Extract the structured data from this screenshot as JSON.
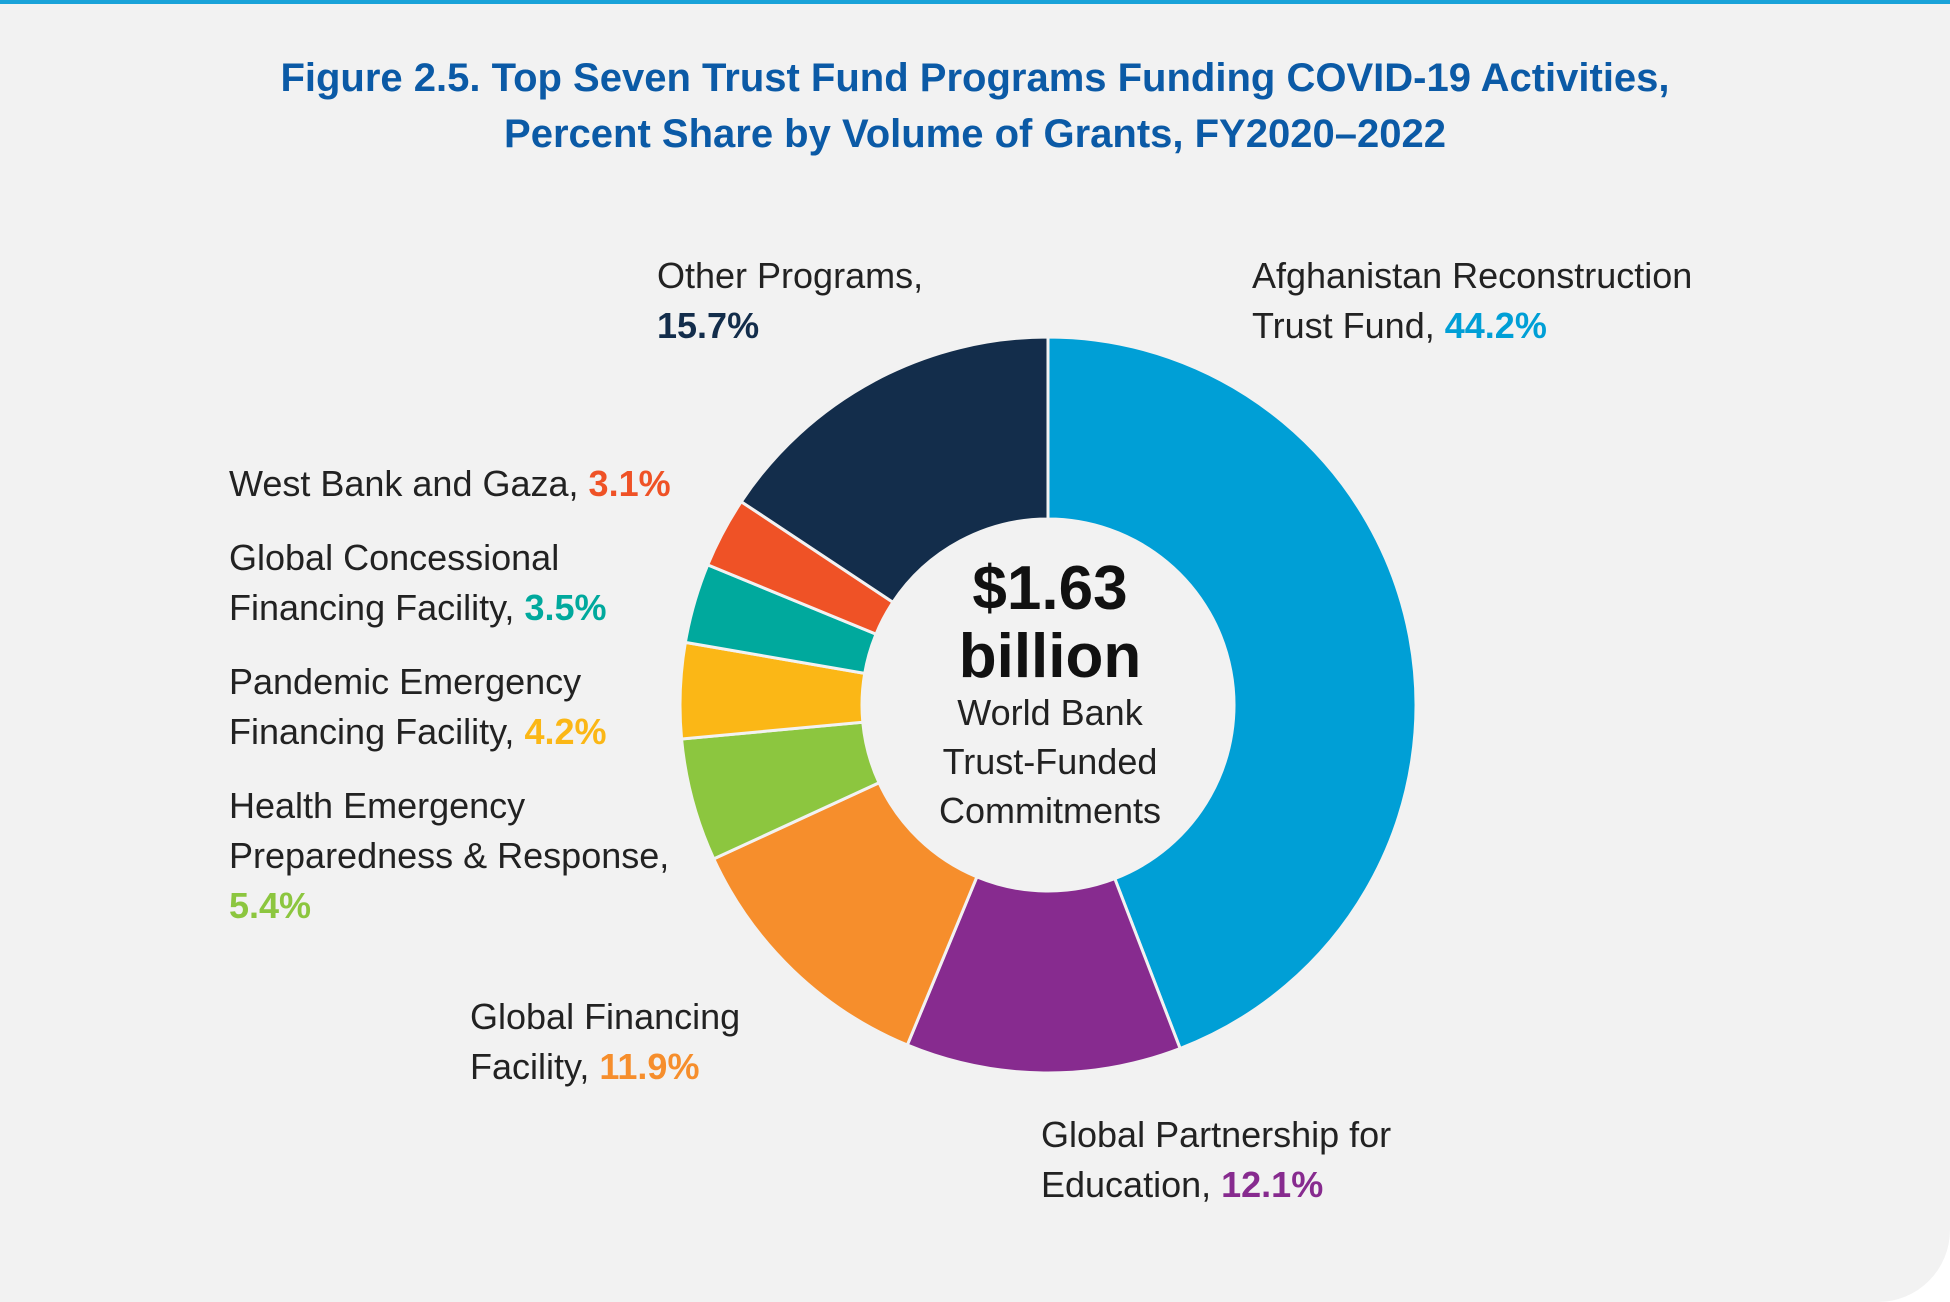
{
  "title": {
    "line1": "Figure 2.5. Top Seven Trust Fund Programs Funding COVID-19 Activities,",
    "line2": "Percent Share by Volume of Grants, FY2020–2022"
  },
  "center": {
    "amount": "$1.63",
    "unit": "billion",
    "line1": "World Bank",
    "line2": "Trust-Funded",
    "line3": "Commitments"
  },
  "chart_data": {
    "type": "pie",
    "variant": "donut",
    "title": "Figure 2.5. Top Seven Trust Fund Programs Funding COVID-19 Activities, Percent Share by Volume of Grants, FY2020–2022",
    "start": "12 o'clock",
    "direction": "clockwise",
    "slices": [
      {
        "label_lines": [
          "Afghanistan Reconstruction",
          "Trust Fund,"
        ],
        "value": 44.2,
        "value_label": "44.2%",
        "color": "#009fd6"
      },
      {
        "label_lines": [
          "Global Partnership for",
          "Education,"
        ],
        "value": 12.1,
        "value_label": "12.1%",
        "color": "#872b8f"
      },
      {
        "label_lines": [
          "Global Financing",
          "Facility,"
        ],
        "value": 11.9,
        "value_label": "11.9%",
        "color": "#f68e2c"
      },
      {
        "label_lines": [
          "Health Emergency",
          "Preparedness & Response,",
          ""
        ],
        "value": 5.4,
        "value_label": "5.4%",
        "color": "#8cc63f"
      },
      {
        "label_lines": [
          "Pandemic Emergency",
          "Financing Facility,"
        ],
        "value": 4.2,
        "value_label": "4.2%",
        "color": "#fbb716"
      },
      {
        "label_lines": [
          "Global Concessional",
          "Financing Facility,"
        ],
        "value": 3.5,
        "value_label": "3.5%",
        "color": "#00a99d"
      },
      {
        "label_lines": [
          "West Bank and Gaza,"
        ],
        "value": 3.1,
        "value_label": "3.1%",
        "color": "#ef5226"
      },
      {
        "label_lines": [
          "Other Programs,",
          ""
        ],
        "value": 15.7,
        "value_label": "15.7%",
        "color": "#132d4b"
      }
    ]
  }
}
